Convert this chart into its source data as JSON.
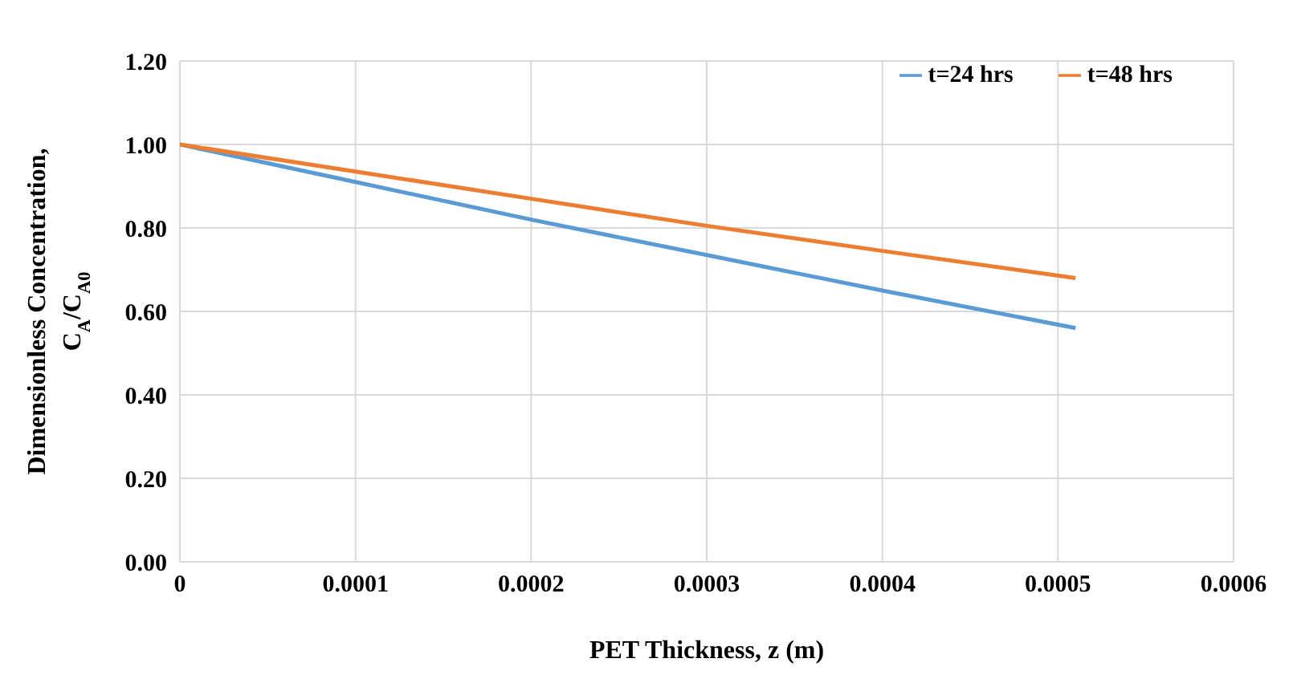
{
  "chart_data": {
    "type": "line",
    "xlabel": "PET Thickness, z (m)",
    "ylabel": "Dimensionless Concentration,\nC$_{A}$/C$_{A0}$",
    "x": [
      0,
      0.0001,
      0.0002,
      0.0003,
      0.0004,
      0.00051
    ],
    "series": [
      {
        "name": "t=24 hrs",
        "color": "#5b9bd5",
        "values": [
          1,
          0.91,
          0.82,
          0.735,
          0.65,
          0.56
        ]
      },
      {
        "name": "t=48 hrs",
        "color": "#ed7d31",
        "values": [
          1,
          0.935,
          0.87,
          0.805,
          0.745,
          0.68
        ]
      }
    ],
    "xlim": [
      0,
      0.0006
    ],
    "xticks": [
      0,
      0.0001,
      0.0002,
      0.0003,
      0.0004,
      0.0005,
      0.0006
    ],
    "ylim": [
      0,
      1.2
    ],
    "yticks": [
      {
        "value": 0,
        "label": "0.00"
      },
      {
        "value": 0.2,
        "label": "0.20"
      },
      {
        "value": 0.4,
        "label": "0.40"
      },
      {
        "value": 0.6,
        "label": "0.60"
      },
      {
        "value": 0.8,
        "label": "0.80"
      },
      {
        "value": 1,
        "label": "1.00"
      },
      {
        "value": 1.2,
        "label": "1.20"
      }
    ],
    "grid": true,
    "legend": "top right",
    "marker": "none",
    "line_style": "solid"
  }
}
